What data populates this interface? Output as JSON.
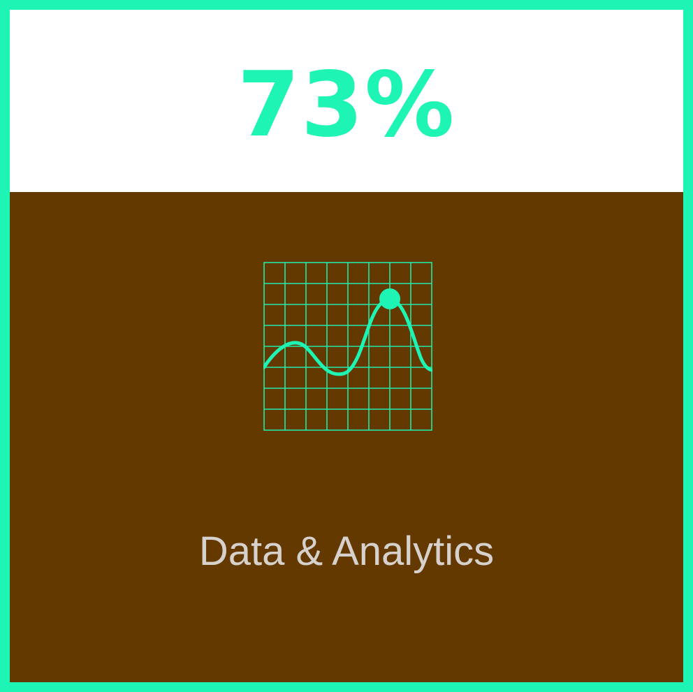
{
  "stat": {
    "value": "73%"
  },
  "icon": {
    "name": "line-chart-icon"
  },
  "label": {
    "text": "Data & Analytics"
  },
  "colors": {
    "accent": "#1EF4B4",
    "panel": "#633900",
    "label": "#D6D1CD",
    "top": "#FFFFFF"
  }
}
